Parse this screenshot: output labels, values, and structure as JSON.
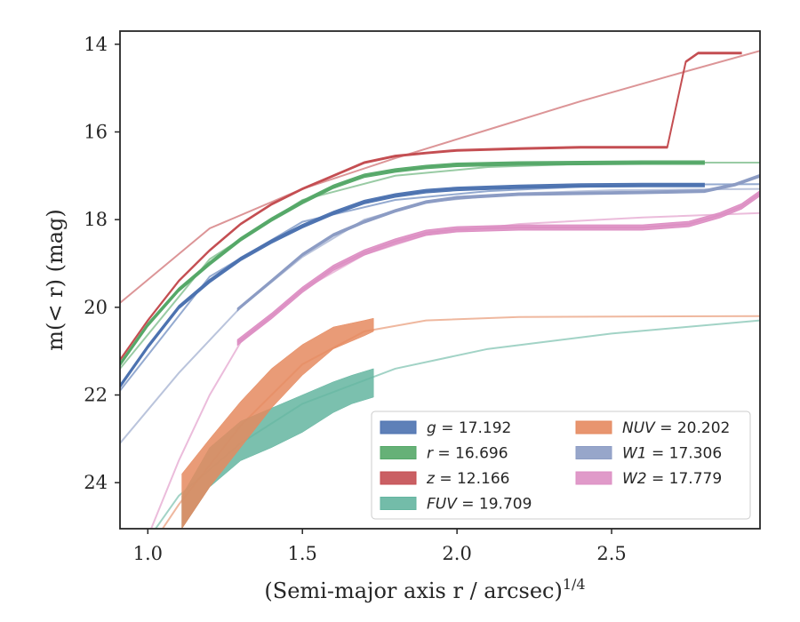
{
  "chart_data": {
    "type": "line",
    "xlabel": "(Semi-major axis r / arcsec)",
    "xlabel_sup": "1/4",
    "ylabel": "m(< r) (mag)",
    "xlim": [
      0.91,
      2.98
    ],
    "ylim": [
      25.05,
      13.7
    ],
    "y_inverted": true,
    "grid": false,
    "legend_placement": "lower-right",
    "x_ticks": [
      {
        "value": 1.0,
        "label": "1.0"
      },
      {
        "value": 1.5,
        "label": "1.5"
      },
      {
        "value": 2.0,
        "label": "2.0"
      },
      {
        "value": 2.5,
        "label": "2.5"
      }
    ],
    "y_ticks": [
      {
        "value": 14,
        "label": "14"
      },
      {
        "value": 16,
        "label": "16"
      },
      {
        "value": 18,
        "label": "18"
      },
      {
        "value": 20,
        "label": "20"
      },
      {
        "value": 22,
        "label": "22"
      },
      {
        "value": 24,
        "label": "24"
      }
    ],
    "series": [
      {
        "name": "g = 17.192",
        "label_var": "g",
        "label_value": "= 17.192",
        "color": "#4c72b0",
        "width": 0.08,
        "x": [
          0.91,
          1.0,
          1.1,
          1.2,
          1.3,
          1.4,
          1.5,
          1.6,
          1.7,
          1.8,
          1.9,
          2.0,
          2.2,
          2.4,
          2.6,
          2.8
        ],
        "y": [
          21.8,
          20.9,
          20.0,
          19.4,
          18.9,
          18.5,
          18.15,
          17.85,
          17.6,
          17.45,
          17.35,
          17.3,
          17.25,
          17.22,
          17.21,
          17.21
        ],
        "model_x": [
          0.91,
          1.2,
          1.5,
          1.8,
          2.1,
          2.4,
          2.7,
          2.98
        ],
        "model_y": [
          21.9,
          19.3,
          18.05,
          17.55,
          17.35,
          17.25,
          17.2,
          17.19
        ]
      },
      {
        "name": "r = 16.696",
        "label_var": "r",
        "label_value": "= 16.696",
        "color": "#55a868",
        "width": 0.08,
        "x": [
          0.91,
          1.0,
          1.1,
          1.2,
          1.3,
          1.4,
          1.5,
          1.6,
          1.7,
          1.8,
          1.9,
          2.0,
          2.2,
          2.4,
          2.6,
          2.8
        ],
        "y": [
          21.3,
          20.4,
          19.6,
          19.0,
          18.45,
          18.0,
          17.6,
          17.25,
          17.0,
          16.88,
          16.8,
          16.75,
          16.72,
          16.71,
          16.7,
          16.7
        ],
        "model_x": [
          0.91,
          1.2,
          1.5,
          1.8,
          2.1,
          2.4,
          2.7,
          2.98
        ],
        "model_y": [
          21.4,
          18.9,
          17.55,
          17.0,
          16.8,
          16.73,
          16.7,
          16.7
        ]
      },
      {
        "name": "z = 12.166",
        "label_var": "z",
        "label_value": "= 12.166",
        "color": "#c44e52",
        "width": 0.04,
        "x": [
          0.91,
          1.0,
          1.1,
          1.2,
          1.3,
          1.4,
          1.5,
          1.6,
          1.7,
          1.8,
          1.9,
          2.0,
          2.2,
          2.4,
          2.6,
          2.68,
          2.74,
          2.78,
          2.92
        ],
        "y": [
          21.2,
          20.3,
          19.4,
          18.7,
          18.1,
          17.65,
          17.3,
          17.0,
          16.7,
          16.55,
          16.48,
          16.42,
          16.38,
          16.35,
          16.35,
          16.35,
          14.4,
          14.2,
          14.2
        ],
        "model_x": [
          0.91,
          1.2,
          1.5,
          1.8,
          2.1,
          2.4,
          2.7,
          2.98
        ],
        "model_y": [
          19.9,
          18.2,
          17.3,
          16.6,
          15.95,
          15.3,
          14.7,
          14.15
        ]
      },
      {
        "name": "FUV = 19.709",
        "label_var": "FUV",
        "label_value": "= 19.709",
        "color": "#64b5a0",
        "band": true,
        "x": [
          1.11,
          1.2,
          1.3,
          1.4,
          1.5,
          1.6,
          1.66,
          1.73
        ],
        "y_upper": [
          24.3,
          23.2,
          22.6,
          22.3,
          22.0,
          21.7,
          21.55,
          21.4
        ],
        "y_lower": [
          25.05,
          24.1,
          23.5,
          23.2,
          22.85,
          22.4,
          22.2,
          22.05
        ],
        "model_x": [
          0.91,
          1.1,
          1.3,
          1.5,
          1.8,
          2.1,
          2.5,
          2.98
        ],
        "model_y": [
          26.2,
          24.3,
          23.1,
          22.2,
          21.4,
          20.95,
          20.6,
          20.3
        ]
      },
      {
        "name": "NUV = 20.202",
        "label_var": "NUV",
        "label_value": "= 20.202",
        "color": "#e5895f",
        "band": true,
        "x": [
          1.11,
          1.2,
          1.3,
          1.4,
          1.5,
          1.6,
          1.7,
          1.73
        ],
        "y_upper": [
          23.8,
          23.0,
          22.15,
          21.4,
          20.85,
          20.45,
          20.3,
          20.25
        ],
        "y_lower": [
          25.05,
          24.1,
          23.2,
          22.3,
          21.55,
          20.95,
          20.65,
          20.55
        ],
        "model_x": [
          0.91,
          1.1,
          1.3,
          1.5,
          1.7,
          1.9,
          2.2,
          2.98
        ],
        "model_y": [
          26.5,
          24.5,
          22.7,
          21.3,
          20.55,
          20.3,
          20.22,
          20.2
        ]
      },
      {
        "name": "W1 = 17.306",
        "label_var": "W1",
        "label_value": "= 17.306",
        "color": "#8c9cc4",
        "width": 0.06,
        "x": [
          1.29,
          1.4,
          1.5,
          1.6,
          1.7,
          1.8,
          1.9,
          2.0,
          2.2,
          2.4,
          2.6,
          2.8,
          2.9,
          2.98
        ],
        "y": [
          20.05,
          19.4,
          18.8,
          18.35,
          18.05,
          17.8,
          17.6,
          17.5,
          17.42,
          17.4,
          17.38,
          17.35,
          17.2,
          17.0
        ],
        "model_x": [
          0.91,
          1.1,
          1.3,
          1.5,
          1.7,
          1.9,
          2.2,
          2.5,
          2.98
        ],
        "model_y": [
          23.1,
          21.5,
          20.0,
          18.85,
          18.0,
          17.6,
          17.4,
          17.33,
          17.3
        ]
      },
      {
        "name": "W2 = 17.779",
        "label_var": "W2",
        "label_value": "= 17.779",
        "color": "#dd8fc3",
        "width": 0.12,
        "x": [
          1.29,
          1.4,
          1.5,
          1.6,
          1.7,
          1.8,
          1.9,
          2.0,
          2.2,
          2.4,
          2.6,
          2.75,
          2.85,
          2.92,
          2.98
        ],
        "y": [
          20.8,
          20.2,
          19.6,
          19.1,
          18.75,
          18.5,
          18.3,
          18.22,
          18.18,
          18.18,
          18.18,
          18.1,
          17.9,
          17.7,
          17.4
        ],
        "model_x": [
          0.91,
          1.1,
          1.2,
          1.3,
          1.5,
          1.7,
          1.9,
          2.2,
          2.6,
          2.98
        ],
        "model_y": [
          26.8,
          23.5,
          22.0,
          20.8,
          19.6,
          18.8,
          18.35,
          18.1,
          17.95,
          17.85
        ]
      }
    ]
  }
}
